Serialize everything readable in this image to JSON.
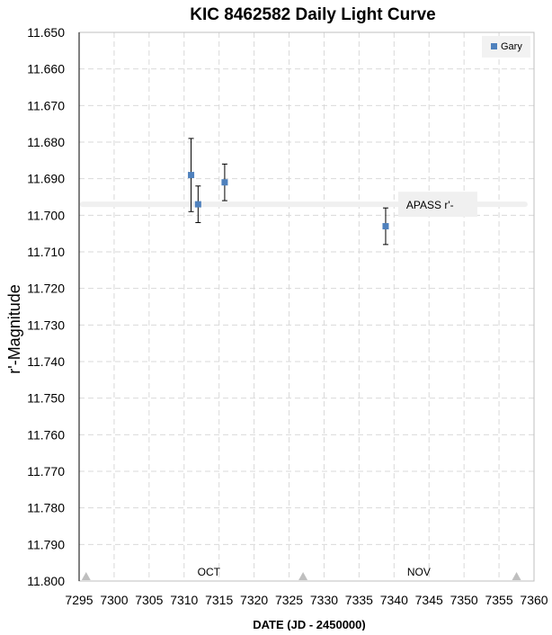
{
  "chart_data": {
    "type": "scatter",
    "title": "KIC 8462582 Daily Light Curve",
    "xlabel": "DATE (JD - 2450000)",
    "ylabel": "r'-Magnitude",
    "xlim": [
      7295,
      7360
    ],
    "ylim": [
      11.65,
      11.8
    ],
    "y_inverted": true,
    "x_ticks": [
      7295,
      7300,
      7305,
      7310,
      7315,
      7320,
      7325,
      7330,
      7335,
      7340,
      7345,
      7350,
      7355,
      7360
    ],
    "y_ticks": [
      11.65,
      11.66,
      11.67,
      11.68,
      11.69,
      11.7,
      11.71,
      11.72,
      11.73,
      11.74,
      11.75,
      11.76,
      11.77,
      11.78,
      11.79,
      11.8
    ],
    "y_tick_decimals": 3,
    "grid": true,
    "legend_position": "top-right",
    "series": [
      {
        "name": "Gary",
        "color": "#4f81bd",
        "marker": "square",
        "points": [
          {
            "x": 7311.0,
            "y": 11.689,
            "err": 0.01
          },
          {
            "x": 7312.0,
            "y": 11.697,
            "err": 0.005
          },
          {
            "x": 7315.8,
            "y": 11.691,
            "err": 0.005
          },
          {
            "x": 7338.8,
            "y": 11.703,
            "err": 0.005
          }
        ]
      }
    ],
    "reference_line": {
      "label": "APASS r'-",
      "y": 11.697,
      "color": "#f0f0f0"
    },
    "month_labels": [
      {
        "text": "OCT",
        "x": 7312
      },
      {
        "text": "NOV",
        "x": 7342
      }
    ],
    "month_markers": [
      7296,
      7327,
      7357.5
    ],
    "marker_color": "#bfbfbf"
  }
}
